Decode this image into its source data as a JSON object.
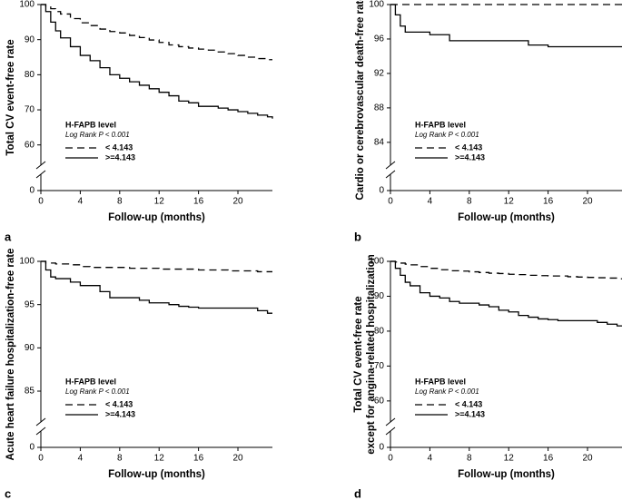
{
  "chart_data": [
    {
      "type": "line",
      "panel": "a",
      "ylabel": [
        "Total CV event-free rate"
      ],
      "xlabel": "Follow-up (months)",
      "legend_title": "H-FAPB level",
      "legend_subtitle": "Log Rank P < 0.001",
      "xlim": [
        0,
        23.5
      ],
      "xticks": [
        0,
        4,
        8,
        12,
        16,
        20
      ],
      "ylim": [
        47,
        100
      ],
      "yticks": [
        0,
        60,
        70,
        80,
        90,
        100
      ],
      "y_break": true,
      "x": [
        0,
        0.5,
        1,
        1.5,
        2,
        3,
        4,
        5,
        6,
        7,
        8,
        9,
        10,
        11,
        12,
        13,
        14,
        15,
        16,
        17,
        18,
        19,
        20,
        21,
        22,
        23,
        23.5
      ],
      "series": [
        {
          "name": "< 4.143",
          "color": "#000000",
          "dash": true,
          "values": [
            100,
            99.5,
            98.8,
            98,
            97.3,
            96,
            94.8,
            94,
            93,
            92.3,
            91.9,
            91.2,
            90.6,
            89.9,
            89.2,
            88.5,
            88,
            87.6,
            87.3,
            87,
            86.5,
            86,
            85.5,
            85,
            84.6,
            84.3,
            84.3
          ]
        },
        {
          "name": ">=4.143",
          "color": "#000000",
          "dash": false,
          "values": [
            100,
            98,
            95,
            92.5,
            90.5,
            88,
            85.5,
            84,
            82,
            80,
            79,
            78,
            77,
            76,
            75,
            74,
            72.5,
            72,
            71,
            71,
            70.5,
            70,
            69.5,
            69,
            68.5,
            68,
            67.5
          ]
        }
      ]
    },
    {
      "type": "line",
      "panel": "b",
      "ylabel": [
        "Cardio or cerebrovascular death-free rate"
      ],
      "xlabel": "Follow-up (months)",
      "legend_title": "H-FAPB level",
      "legend_subtitle": "Log Rank P < 0.001",
      "xlim": [
        0,
        23.5
      ],
      "xticks": [
        0,
        4,
        8,
        12,
        16,
        20
      ],
      "ylim": [
        78.4,
        100
      ],
      "yticks": [
        0,
        84,
        88,
        92,
        96,
        100
      ],
      "y_break": true,
      "x": [
        0,
        0.5,
        1,
        1.5,
        2,
        3,
        4,
        5,
        6,
        7,
        8,
        9,
        10,
        11,
        12,
        13,
        14,
        15,
        16,
        17,
        18,
        19,
        20,
        21,
        22,
        23,
        23.5
      ],
      "series": [
        {
          "name": "< 4.143",
          "color": "#000000",
          "dash": true,
          "values": [
            100,
            100,
            100,
            100,
            100,
            100,
            100,
            100,
            100,
            100,
            100,
            100,
            100,
            100,
            100,
            100,
            100,
            100,
            100,
            100,
            100,
            100,
            100,
            100,
            100,
            100,
            100
          ]
        },
        {
          "name": ">=4.143",
          "color": "#000000",
          "dash": false,
          "values": [
            100,
            98.8,
            97.5,
            96.8,
            96.8,
            96.8,
            96.5,
            96.5,
            95.8,
            95.8,
            95.8,
            95.8,
            95.8,
            95.8,
            95.8,
            95.8,
            95.3,
            95.3,
            95.1,
            95.1,
            95.1,
            95.1,
            95.1,
            95.1,
            95.1,
            95.1,
            95.1
          ]
        }
      ]
    },
    {
      "type": "line",
      "panel": "c",
      "ylabel": [
        "Acute heart failure hospitalization-free rate"
      ],
      "xlabel": "Follow-up (months)",
      "legend_title": "H-FAPB level",
      "legend_subtitle": "Log Rank P < 0.001",
      "xlim": [
        0,
        23.5
      ],
      "xticks": [
        0,
        4,
        8,
        12,
        16,
        20
      ],
      "ylim": [
        78.5,
        100
      ],
      "yticks": [
        0,
        85,
        90,
        95,
        100
      ],
      "y_break": true,
      "x": [
        0,
        0.5,
        1,
        1.5,
        2,
        3,
        4,
        5,
        6,
        7,
        8,
        9,
        10,
        11,
        12,
        13,
        14,
        15,
        16,
        17,
        18,
        19,
        20,
        21,
        22,
        23,
        23.5
      ],
      "series": [
        {
          "name": "< 4.143",
          "color": "#000000",
          "dash": true,
          "values": [
            100,
            99.8,
            99.8,
            99.7,
            99.7,
            99.6,
            99.4,
            99.3,
            99.3,
            99.3,
            99.3,
            99.2,
            99.2,
            99.2,
            99.1,
            99.1,
            99.1,
            99.1,
            99,
            99,
            99,
            98.9,
            98.9,
            98.9,
            98.8,
            98.8,
            98.8
          ]
        },
        {
          "name": ">=4.143",
          "color": "#000000",
          "dash": false,
          "values": [
            100,
            99,
            98.2,
            98,
            98,
            97.6,
            97.2,
            97.2,
            96.5,
            95.8,
            95.8,
            95.8,
            95.5,
            95.2,
            95.2,
            95,
            94.8,
            94.7,
            94.6,
            94.6,
            94.6,
            94.6,
            94.6,
            94.6,
            94.3,
            94,
            94
          ]
        }
      ]
    },
    {
      "type": "line",
      "panel": "d",
      "ylabel": [
        "Total CV event-free rate",
        "except for angina-related hospitalization"
      ],
      "xlabel": "Follow-up (months)",
      "legend_title": "H-FAPB level",
      "legend_subtitle": "Log Rank P < 0.001",
      "xlim": [
        0,
        23.5
      ],
      "xticks": [
        0,
        4,
        8,
        12,
        16,
        20
      ],
      "ylim": [
        46.7,
        100
      ],
      "yticks": [
        0,
        60,
        70,
        80,
        90,
        100
      ],
      "y_break": true,
      "x": [
        0,
        0.5,
        1,
        1.5,
        2,
        3,
        4,
        5,
        6,
        7,
        8,
        9,
        10,
        11,
        12,
        13,
        14,
        15,
        16,
        17,
        18,
        19,
        20,
        21,
        22,
        23,
        23.5
      ],
      "series": [
        {
          "name": "< 4.143",
          "color": "#000000",
          "dash": true,
          "values": [
            100,
            99.8,
            99.5,
            99.2,
            99,
            98.5,
            98,
            97.6,
            97.3,
            97.2,
            97,
            96.8,
            96.6,
            96.5,
            96.3,
            96.2,
            96,
            95.9,
            95.8,
            95.8,
            95.6,
            95.5,
            95.4,
            95.3,
            95.2,
            95,
            95
          ]
        },
        {
          "name": ">=4.143",
          "color": "#000000",
          "dash": false,
          "values": [
            100,
            98,
            96,
            94,
            93,
            91,
            90,
            89.5,
            88.5,
            88,
            88,
            87.5,
            87,
            86,
            85.5,
            84.5,
            84,
            83.5,
            83.3,
            83,
            83,
            83,
            83,
            82.5,
            82,
            81.5,
            81.5
          ]
        }
      ]
    }
  ]
}
